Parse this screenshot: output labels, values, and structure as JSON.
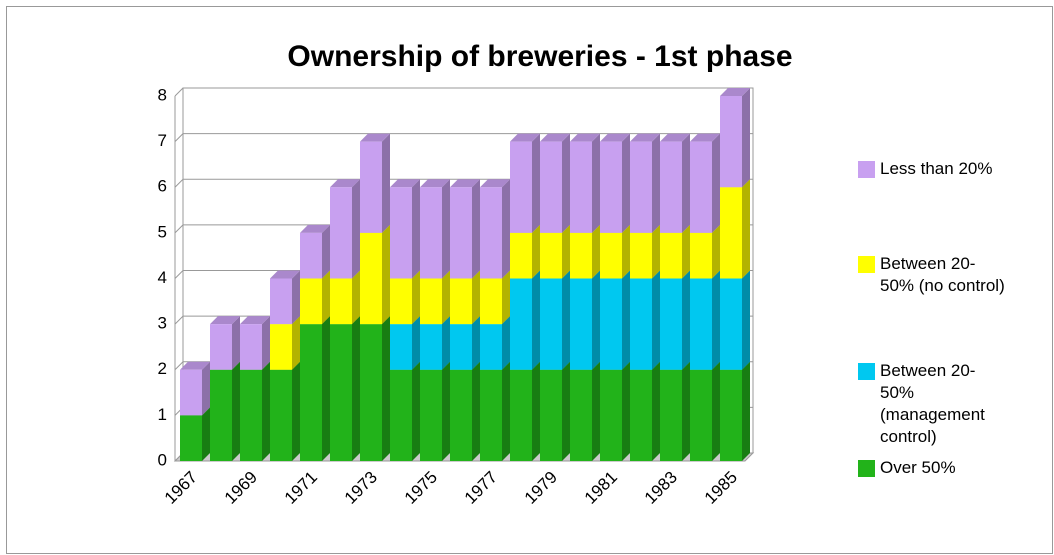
{
  "chart_data": {
    "type": "bar3d_stacked",
    "title": "Ownership of breweries - 1st phase",
    "categories": [
      "1967",
      null,
      "1969",
      null,
      "1971",
      null,
      "1973",
      null,
      "1975",
      null,
      "1977",
      null,
      "1979",
      null,
      "1981",
      null,
      "1983",
      null,
      "1985"
    ],
    "series": [
      {
        "name": "Over 50%",
        "color": "#22b31a",
        "values": [
          1,
          2,
          2,
          2,
          3,
          3,
          3,
          2,
          2,
          2,
          2,
          2,
          2,
          2,
          2,
          2,
          2,
          2,
          2
        ]
      },
      {
        "name": "Between 20-50% (management control)",
        "color": "#00c8f0",
        "values": [
          0,
          0,
          0,
          0,
          0,
          0,
          0,
          1,
          1,
          1,
          1,
          2,
          2,
          2,
          2,
          2,
          2,
          2,
          2
        ]
      },
      {
        "name": "Between 20-50% (no control)",
        "color": "#ffff00",
        "values": [
          0,
          0,
          0,
          1,
          1,
          1,
          2,
          1,
          1,
          1,
          1,
          1,
          1,
          1,
          1,
          1,
          1,
          1,
          2
        ]
      },
      {
        "name": "Less than 20%",
        "color": "#c8a0f0",
        "values": [
          1,
          1,
          1,
          1,
          1,
          2,
          2,
          2,
          2,
          2,
          2,
          2,
          2,
          2,
          2,
          2,
          2,
          2,
          2
        ]
      }
    ],
    "ylim": [
      0,
      8
    ],
    "yticks": [
      0,
      1,
      2,
      3,
      4,
      5,
      6,
      7,
      8
    ],
    "grid": true
  }
}
